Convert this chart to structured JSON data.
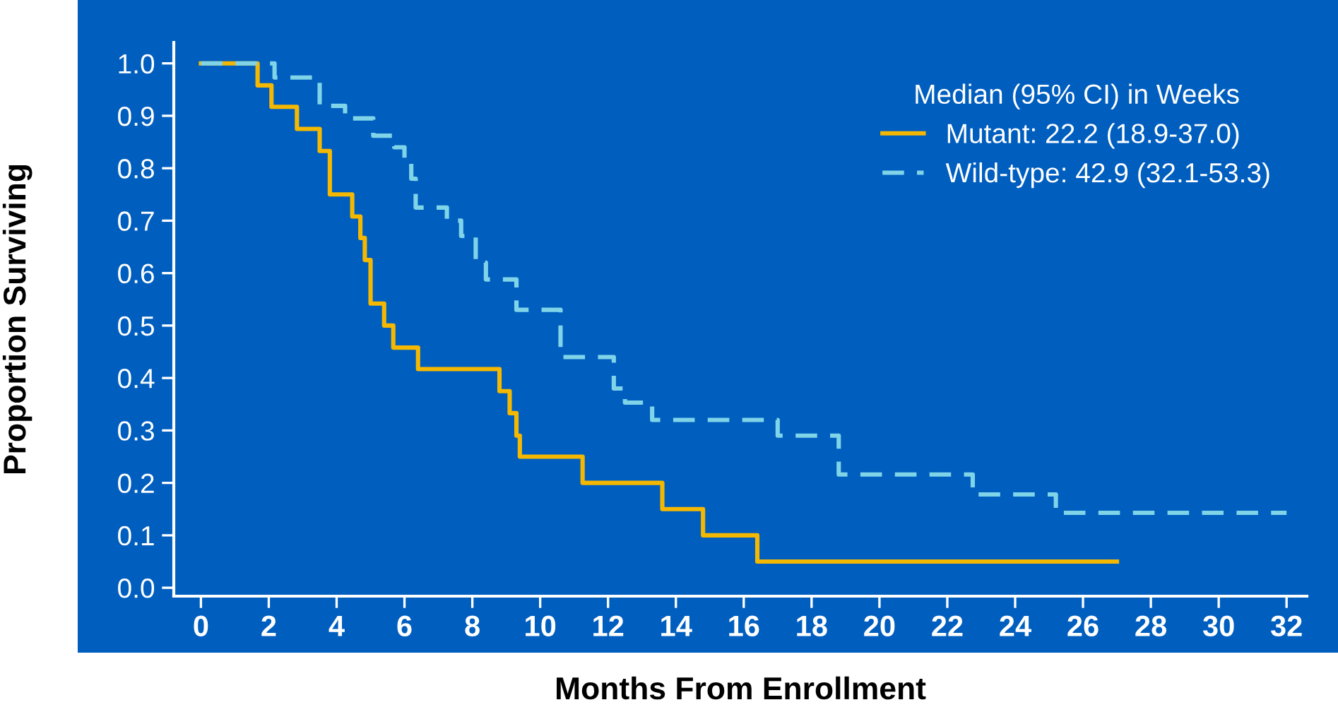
{
  "chart_data": {
    "type": "step",
    "xlabel": "Months From Enrollment",
    "ylabel": "Proportion Surviving",
    "legend_title": "Median (95% CI) in Weeks",
    "legend": "top right",
    "grid": false,
    "xlim": [
      -0.8,
      32.6
    ],
    "ylim": [
      -0.016,
      1.04
    ],
    "xticks": [
      0,
      2,
      4,
      6,
      8,
      10,
      12,
      14,
      16,
      18,
      20,
      22,
      24,
      26,
      28,
      30,
      32
    ],
    "yticks": [
      {
        "value": 0,
        "label": "0.0"
      },
      {
        "value": 0.1,
        "label": "0.1"
      },
      {
        "value": 0.2,
        "label": "0.2"
      },
      {
        "value": 0.3,
        "label": "0.3"
      },
      {
        "value": 0.4,
        "label": "0.4"
      },
      {
        "value": 0.5,
        "label": "0.5"
      },
      {
        "value": 0.6,
        "label": "0.6"
      },
      {
        "value": 0.7,
        "label": "0.7"
      },
      {
        "value": 0.8,
        "label": "0.8"
      },
      {
        "value": 0.9,
        "label": "0.9"
      },
      {
        "value": 1.0,
        "label": "1.0"
      }
    ],
    "series": [
      {
        "name": "Mutant: 22.2 (18.9-37.0)",
        "color": "#f5b800",
        "line_style": "solid",
        "x": [
          0,
          1.67,
          2.08,
          2.83,
          3.5,
          3.8,
          4.46,
          4.7,
          4.83,
          5.0,
          5.4,
          5.67,
          6.4,
          8.8,
          9.1,
          9.3,
          9.4,
          11.25,
          13.6,
          14.8,
          16.4,
          27.0
        ],
        "values": [
          1.0,
          0.958,
          0.917,
          0.875,
          0.833,
          0.75,
          0.708,
          0.667,
          0.625,
          0.542,
          0.5,
          0.458,
          0.417,
          0.375,
          0.333,
          0.29,
          0.25,
          0.2,
          0.15,
          0.1,
          0.05,
          0.05
        ]
      },
      {
        "name": "Wild-type: 42.9 (32.1-53.3)",
        "color": "#7fd4e8",
        "line_style": "dashed",
        "x": [
          0,
          2.17,
          3.5,
          4.25,
          5.08,
          5.7,
          6.0,
          6.2,
          6.33,
          7.25,
          7.67,
          8.1,
          8.4,
          9.3,
          10.6,
          12.17,
          12.5,
          13.3,
          17.0,
          18.8,
          22.75,
          25.2,
          32.0
        ],
        "values": [
          1.0,
          0.973,
          0.919,
          0.895,
          0.862,
          0.84,
          0.81,
          0.78,
          0.725,
          0.7,
          0.671,
          0.62,
          0.588,
          0.53,
          0.44,
          0.38,
          0.353,
          0.32,
          0.29,
          0.216,
          0.178,
          0.143,
          0.143
        ]
      }
    ]
  }
}
